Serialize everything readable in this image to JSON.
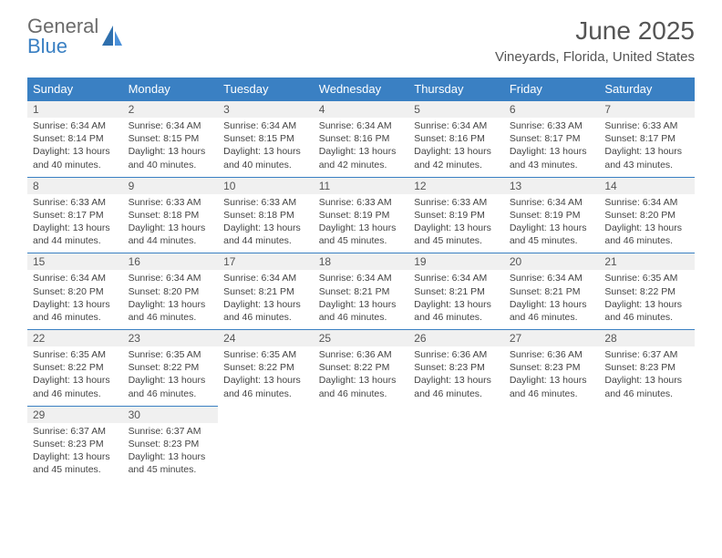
{
  "logo": {
    "text1": "General",
    "text2": "Blue"
  },
  "title": "June 2025",
  "subtitle": "Vineyards, Florida, United States",
  "colors": {
    "header_bg": "#3a80c3",
    "header_fg": "#ffffff",
    "daynum_bg": "#f0f0f0",
    "daynum_border": "#3a80c3",
    "body_bg": "#ffffff",
    "text": "#444444",
    "title_color": "#555555"
  },
  "dayNames": [
    "Sunday",
    "Monday",
    "Tuesday",
    "Wednesday",
    "Thursday",
    "Friday",
    "Saturday"
  ],
  "weeks": [
    [
      {
        "n": "1",
        "sr": "6:34 AM",
        "ss": "8:14 PM",
        "dl": "13 hours and 40 minutes."
      },
      {
        "n": "2",
        "sr": "6:34 AM",
        "ss": "8:15 PM",
        "dl": "13 hours and 40 minutes."
      },
      {
        "n": "3",
        "sr": "6:34 AM",
        "ss": "8:15 PM",
        "dl": "13 hours and 40 minutes."
      },
      {
        "n": "4",
        "sr": "6:34 AM",
        "ss": "8:16 PM",
        "dl": "13 hours and 42 minutes."
      },
      {
        "n": "5",
        "sr": "6:34 AM",
        "ss": "8:16 PM",
        "dl": "13 hours and 42 minutes."
      },
      {
        "n": "6",
        "sr": "6:33 AM",
        "ss": "8:17 PM",
        "dl": "13 hours and 43 minutes."
      },
      {
        "n": "7",
        "sr": "6:33 AM",
        "ss": "8:17 PM",
        "dl": "13 hours and 43 minutes."
      }
    ],
    [
      {
        "n": "8",
        "sr": "6:33 AM",
        "ss": "8:17 PM",
        "dl": "13 hours and 44 minutes."
      },
      {
        "n": "9",
        "sr": "6:33 AM",
        "ss": "8:18 PM",
        "dl": "13 hours and 44 minutes."
      },
      {
        "n": "10",
        "sr": "6:33 AM",
        "ss": "8:18 PM",
        "dl": "13 hours and 44 minutes."
      },
      {
        "n": "11",
        "sr": "6:33 AM",
        "ss": "8:19 PM",
        "dl": "13 hours and 45 minutes."
      },
      {
        "n": "12",
        "sr": "6:33 AM",
        "ss": "8:19 PM",
        "dl": "13 hours and 45 minutes."
      },
      {
        "n": "13",
        "sr": "6:34 AM",
        "ss": "8:19 PM",
        "dl": "13 hours and 45 minutes."
      },
      {
        "n": "14",
        "sr": "6:34 AM",
        "ss": "8:20 PM",
        "dl": "13 hours and 46 minutes."
      }
    ],
    [
      {
        "n": "15",
        "sr": "6:34 AM",
        "ss": "8:20 PM",
        "dl": "13 hours and 46 minutes."
      },
      {
        "n": "16",
        "sr": "6:34 AM",
        "ss": "8:20 PM",
        "dl": "13 hours and 46 minutes."
      },
      {
        "n": "17",
        "sr": "6:34 AM",
        "ss": "8:21 PM",
        "dl": "13 hours and 46 minutes."
      },
      {
        "n": "18",
        "sr": "6:34 AM",
        "ss": "8:21 PM",
        "dl": "13 hours and 46 minutes."
      },
      {
        "n": "19",
        "sr": "6:34 AM",
        "ss": "8:21 PM",
        "dl": "13 hours and 46 minutes."
      },
      {
        "n": "20",
        "sr": "6:34 AM",
        "ss": "8:21 PM",
        "dl": "13 hours and 46 minutes."
      },
      {
        "n": "21",
        "sr": "6:35 AM",
        "ss": "8:22 PM",
        "dl": "13 hours and 46 minutes."
      }
    ],
    [
      {
        "n": "22",
        "sr": "6:35 AM",
        "ss": "8:22 PM",
        "dl": "13 hours and 46 minutes."
      },
      {
        "n": "23",
        "sr": "6:35 AM",
        "ss": "8:22 PM",
        "dl": "13 hours and 46 minutes."
      },
      {
        "n": "24",
        "sr": "6:35 AM",
        "ss": "8:22 PM",
        "dl": "13 hours and 46 minutes."
      },
      {
        "n": "25",
        "sr": "6:36 AM",
        "ss": "8:22 PM",
        "dl": "13 hours and 46 minutes."
      },
      {
        "n": "26",
        "sr": "6:36 AM",
        "ss": "8:23 PM",
        "dl": "13 hours and 46 minutes."
      },
      {
        "n": "27",
        "sr": "6:36 AM",
        "ss": "8:23 PM",
        "dl": "13 hours and 46 minutes."
      },
      {
        "n": "28",
        "sr": "6:37 AM",
        "ss": "8:23 PM",
        "dl": "13 hours and 46 minutes."
      }
    ],
    [
      {
        "n": "29",
        "sr": "6:37 AM",
        "ss": "8:23 PM",
        "dl": "13 hours and 45 minutes."
      },
      {
        "n": "30",
        "sr": "6:37 AM",
        "ss": "8:23 PM",
        "dl": "13 hours and 45 minutes."
      },
      null,
      null,
      null,
      null,
      null
    ]
  ],
  "labels": {
    "sunrise": "Sunrise:",
    "sunset": "Sunset:",
    "daylight": "Daylight:"
  }
}
